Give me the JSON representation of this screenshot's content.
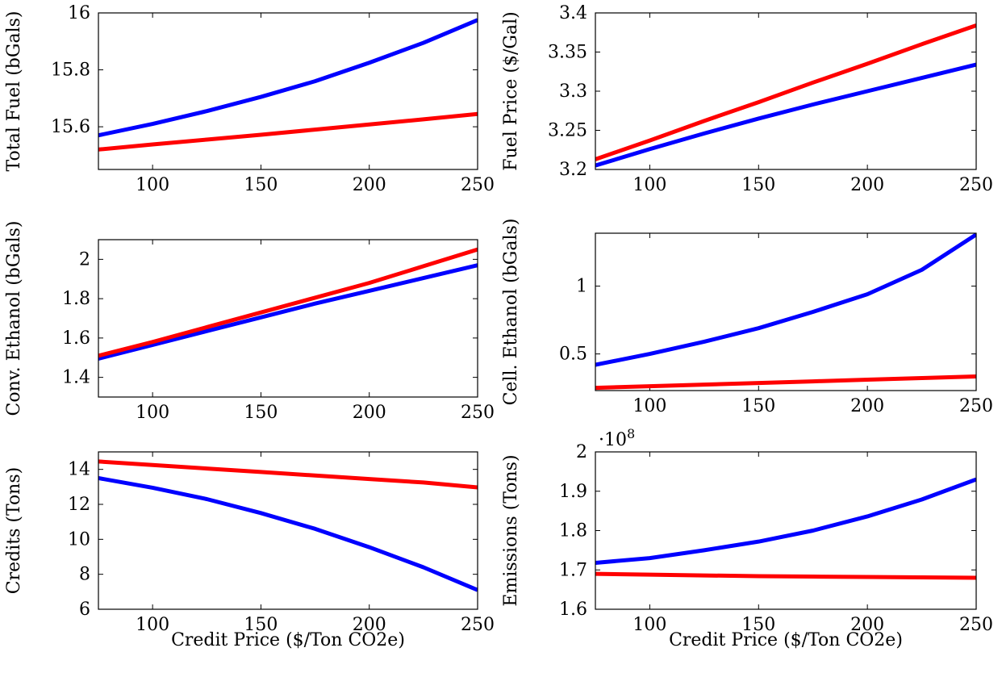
{
  "colors": {
    "series_blue": "#0000ff",
    "series_red": "#ff0000",
    "axis": "#000000",
    "background": "#ffffff"
  },
  "chart_data": [
    {
      "type": "line",
      "title": "",
      "xlabel": "",
      "ylabel": "Total Fuel (bGals)",
      "xlim": [
        75,
        250
      ],
      "ylim": [
        15.45,
        16
      ],
      "xticks": [
        100,
        150,
        200,
        250
      ],
      "yticks": [
        15.6,
        15.8,
        16
      ],
      "ytick_labels": [
        "15.6",
        "15.8",
        "16"
      ],
      "grid": false,
      "legend": false,
      "series": [
        {
          "color": "#0000ff",
          "x": [
            75,
            100,
            125,
            150,
            175,
            200,
            225,
            250
          ],
          "values": [
            15.57,
            15.61,
            15.655,
            15.705,
            15.76,
            15.825,
            15.895,
            15.975
          ]
        },
        {
          "color": "#ff0000",
          "x": [
            75,
            100,
            125,
            150,
            175,
            200,
            225,
            250
          ],
          "values": [
            15.52,
            15.538,
            15.555,
            15.572,
            15.59,
            15.608,
            15.626,
            15.645
          ]
        }
      ]
    },
    {
      "type": "line",
      "title": "",
      "xlabel": "",
      "ylabel": "Fuel Price ($/Gal)",
      "xlim": [
        75,
        250
      ],
      "ylim": [
        3.2,
        3.4
      ],
      "xticks": [
        100,
        150,
        200,
        250
      ],
      "yticks": [
        3.2,
        3.25,
        3.3,
        3.35,
        3.4
      ],
      "ytick_labels": [
        "3.2",
        "3.25",
        "3.3",
        "3.35",
        "3.4"
      ],
      "grid": false,
      "legend": false,
      "series": [
        {
          "color": "#0000ff",
          "x": [
            75,
            100,
            125,
            150,
            175,
            200,
            225,
            250
          ],
          "values": [
            3.205,
            3.226,
            3.246,
            3.265,
            3.283,
            3.3,
            3.317,
            3.334
          ]
        },
        {
          "color": "#ff0000",
          "x": [
            75,
            100,
            125,
            150,
            175,
            200,
            225,
            250
          ],
          "values": [
            3.213,
            3.237,
            3.262,
            3.286,
            3.311,
            3.335,
            3.36,
            3.384
          ]
        }
      ]
    },
    {
      "type": "line",
      "title": "",
      "xlabel": "",
      "ylabel": "Conv. Ethanol (bGals)",
      "xlim": [
        75,
        250
      ],
      "ylim": [
        1.3,
        2.1
      ],
      "xticks": [
        100,
        150,
        200,
        250
      ],
      "yticks": [
        1.4,
        1.6,
        1.8,
        2
      ],
      "ytick_labels": [
        "1.4",
        "1.6",
        "1.8",
        "2"
      ],
      "grid": false,
      "legend": false,
      "series": [
        {
          "color": "#0000ff",
          "x": [
            75,
            100,
            125,
            150,
            175,
            200,
            225,
            250
          ],
          "values": [
            1.495,
            1.565,
            1.635,
            1.705,
            1.775,
            1.84,
            1.905,
            1.97
          ]
        },
        {
          "color": "#ff0000",
          "x": [
            75,
            100,
            125,
            150,
            175,
            200,
            225,
            250
          ],
          "values": [
            1.51,
            1.58,
            1.655,
            1.73,
            1.805,
            1.88,
            1.965,
            2.05
          ]
        }
      ]
    },
    {
      "type": "line",
      "title": "",
      "xlabel": "",
      "ylabel": "Cell. Ethanol (bGals)",
      "xlim": [
        75,
        250
      ],
      "ylim": [
        0.23,
        1.39
      ],
      "xticks": [
        100,
        150,
        200,
        250
      ],
      "yticks": [
        0.5,
        1
      ],
      "ytick_labels": [
        "0.5",
        "1"
      ],
      "grid": false,
      "legend": false,
      "series": [
        {
          "color": "#0000ff",
          "x": [
            75,
            100,
            125,
            150,
            175,
            200,
            225,
            250
          ],
          "values": [
            0.42,
            0.5,
            0.59,
            0.69,
            0.81,
            0.94,
            1.12,
            1.38
          ]
        },
        {
          "color": "#ff0000",
          "x": [
            75,
            100,
            125,
            150,
            175,
            200,
            225,
            250
          ],
          "values": [
            0.25,
            0.262,
            0.274,
            0.286,
            0.298,
            0.31,
            0.322,
            0.334
          ]
        }
      ]
    },
    {
      "type": "line",
      "title": "",
      "xlabel": "Credit Price ($/Ton CO2e)",
      "ylabel": "Credits (Tons)",
      "xlim": [
        75,
        250
      ],
      "ylim": [
        6,
        15
      ],
      "xticks": [
        100,
        150,
        200,
        250
      ],
      "yticks": [
        6,
        8,
        10,
        12,
        14
      ],
      "ytick_labels": [
        "6",
        "8",
        "10",
        "12",
        "14"
      ],
      "grid": false,
      "legend": false,
      "series": [
        {
          "color": "#0000ff",
          "x": [
            75,
            100,
            125,
            150,
            175,
            200,
            225,
            250
          ],
          "values": [
            13.5,
            12.95,
            12.3,
            11.5,
            10.6,
            9.55,
            8.4,
            7.1
          ]
        },
        {
          "color": "#ff0000",
          "x": [
            75,
            100,
            125,
            150,
            175,
            200,
            225,
            250
          ],
          "values": [
            14.45,
            14.25,
            14.05,
            13.85,
            13.65,
            13.45,
            13.25,
            12.97
          ]
        }
      ]
    },
    {
      "type": "line",
      "title": "",
      "xlabel": "Credit Price ($/Ton CO2e)",
      "ylabel": "Emissions (Tons)",
      "scale_label": "·10",
      "scale_exponent": "8",
      "xlim": [
        75,
        250
      ],
      "ylim": [
        1.6,
        2
      ],
      "xticks": [
        100,
        150,
        200,
        250
      ],
      "yticks": [
        1.6,
        1.7,
        1.8,
        1.9,
        2
      ],
      "ytick_labels": [
        "1.6",
        "1.7",
        "1.8",
        "1.9",
        "2"
      ],
      "grid": false,
      "legend": false,
      "series": [
        {
          "color": "#0000ff",
          "x": [
            75,
            100,
            125,
            150,
            175,
            200,
            225,
            250
          ],
          "values": [
            1.718,
            1.73,
            1.75,
            1.772,
            1.8,
            1.836,
            1.879,
            1.93
          ]
        },
        {
          "color": "#ff0000",
          "x": [
            75,
            100,
            125,
            150,
            175,
            200,
            225,
            250
          ],
          "values": [
            1.69,
            1.688,
            1.686,
            1.684,
            1.683,
            1.682,
            1.681,
            1.68
          ]
        }
      ]
    }
  ]
}
